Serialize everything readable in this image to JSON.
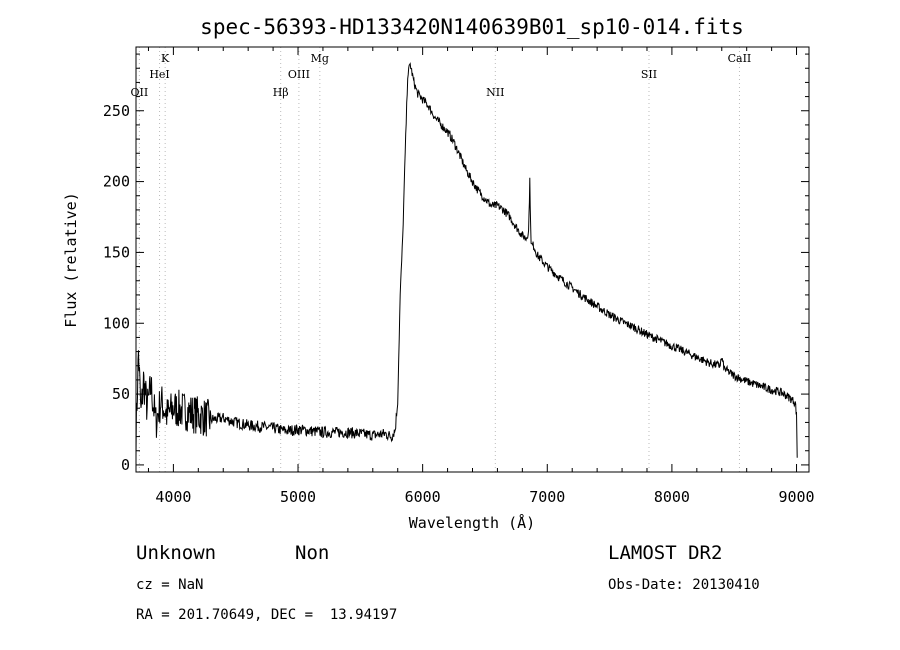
{
  "chart_data": {
    "type": "line",
    "title": "spec-56393-HD133420N140639B01_sp10-014.fits",
    "xlabel": "Wavelength (Å)",
    "ylabel": "Flux (relative)",
    "xlim": [
      3700,
      9100
    ],
    "ylim": [
      -5,
      295
    ],
    "x_ticks": [
      4000,
      5000,
      6000,
      7000,
      8000,
      9000
    ],
    "y_ticks": [
      0,
      50,
      100,
      150,
      200,
      250
    ],
    "grid": false,
    "spectral_lines": [
      {
        "name": "OII",
        "wavelength": 3727
      },
      {
        "name": "K",
        "wavelength": 3934
      },
      {
        "name": "HeI",
        "wavelength": 3889
      },
      {
        "name": "Hβ",
        "wavelength": 4861
      },
      {
        "name": "OIII",
        "wavelength": 5007
      },
      {
        "name": "Mg",
        "wavelength": 5175
      },
      {
        "name": "NII",
        "wavelength": 6583
      },
      {
        "name": "SII",
        "wavelength": 7816
      },
      {
        "name": "CaII",
        "wavelength": 8542
      }
    ],
    "series": [
      {
        "x": [
          3700,
          3720,
          3740,
          3760,
          3790,
          3820,
          3860,
          3900,
          3950,
          4000,
          4100,
          4200,
          4300,
          4400,
          4500,
          4600,
          4700,
          4800,
          4900,
          5000,
          5100,
          5200,
          5300,
          5400,
          5500,
          5600,
          5700,
          5750,
          5780,
          5800,
          5820,
          5840,
          5860,
          5880,
          5900,
          5930,
          5960,
          6000,
          6050,
          6100,
          6150,
          6200,
          6250,
          6300,
          6350,
          6400,
          6450,
          6500,
          6550,
          6600,
          6650,
          6700,
          6750,
          6800,
          6830,
          6850,
          6860,
          6870,
          6890,
          6920,
          6950,
          7000,
          7100,
          7200,
          7300,
          7400,
          7500,
          7600,
          7700,
          7800,
          7900,
          8000,
          8100,
          8200,
          8300,
          8380,
          8400,
          8420,
          8450,
          8500,
          8600,
          8700,
          8800,
          8850,
          8900,
          8950,
          8990,
          9000,
          9005
        ],
        "y": [
          20,
          80,
          35,
          60,
          40,
          55,
          30,
          45,
          35,
          40,
          38,
          35,
          32,
          33,
          30,
          28,
          27,
          26,
          24,
          25,
          24,
          23,
          23,
          23,
          22,
          21,
          22,
          20,
          25,
          45,
          120,
          160,
          220,
          275,
          283,
          270,
          262,
          258,
          253,
          245,
          240,
          235,
          228,
          218,
          208,
          200,
          193,
          188,
          183,
          183,
          180,
          175,
          168,
          162,
          160,
          165,
          200,
          155,
          155,
          148,
          145,
          140,
          132,
          125,
          118,
          112,
          106,
          101,
          97,
          92,
          88,
          84,
          80,
          76,
          72,
          70,
          75,
          68,
          66,
          63,
          59,
          56,
          53,
          52,
          50,
          47,
          44,
          35,
          5
        ]
      }
    ]
  },
  "footer": {
    "class_text": "Unknown",
    "subclass_text": "Non",
    "cz_text": "cz = NaN",
    "coords_text": "RA = 201.70649, DEC =  13.94197",
    "survey_text": "LAMOST DR2",
    "obsdate_text": "Obs-Date: 20130410"
  }
}
